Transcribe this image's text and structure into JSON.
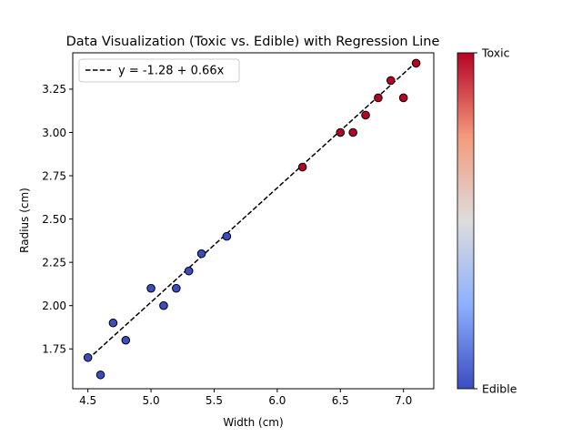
{
  "chart_data": {
    "type": "scatter",
    "title": "Data Visualization (Toxic vs. Edible) with Regression Line",
    "xlabel": "Width (cm)",
    "ylabel": "Radius (cm)",
    "xlim": [
      4.38,
      7.24
    ],
    "ylim": [
      1.52,
      3.46
    ],
    "xticks": [
      4.5,
      5.0,
      5.5,
      6.0,
      6.5,
      7.0
    ],
    "yticks": [
      1.75,
      2.0,
      2.25,
      2.5,
      2.75,
      3.0,
      3.25
    ],
    "grid": false,
    "legend": {
      "placement": "top-left",
      "entry": "y = -1.28 + 0.66x"
    },
    "regression": {
      "intercept": -1.28,
      "slope": 0.66,
      "x_range": [
        4.5,
        7.1
      ],
      "color": "#000000",
      "style": "dashed"
    },
    "colorbar": {
      "low_label": "Edible",
      "high_label": "Toxic",
      "low_color": "#3b4cc0",
      "high_color": "#b40426"
    },
    "series": [
      {
        "class": "Edible",
        "color": "#3b4cc0",
        "points": [
          {
            "x": 4.5,
            "y": 1.7
          },
          {
            "x": 4.6,
            "y": 1.6
          },
          {
            "x": 4.7,
            "y": 1.9
          },
          {
            "x": 4.8,
            "y": 1.8
          },
          {
            "x": 5.0,
            "y": 2.1
          },
          {
            "x": 5.1,
            "y": 2.0
          },
          {
            "x": 5.2,
            "y": 2.1
          },
          {
            "x": 5.3,
            "y": 2.2
          },
          {
            "x": 5.4,
            "y": 2.3
          },
          {
            "x": 5.6,
            "y": 2.4
          }
        ]
      },
      {
        "class": "Toxic",
        "color": "#b40426",
        "points": [
          {
            "x": 6.2,
            "y": 2.8
          },
          {
            "x": 6.5,
            "y": 3.0
          },
          {
            "x": 6.6,
            "y": 3.0
          },
          {
            "x": 6.7,
            "y": 3.1
          },
          {
            "x": 6.8,
            "y": 3.2
          },
          {
            "x": 6.9,
            "y": 3.3
          },
          {
            "x": 7.0,
            "y": 3.2
          },
          {
            "x": 7.1,
            "y": 3.4
          }
        ]
      }
    ]
  }
}
